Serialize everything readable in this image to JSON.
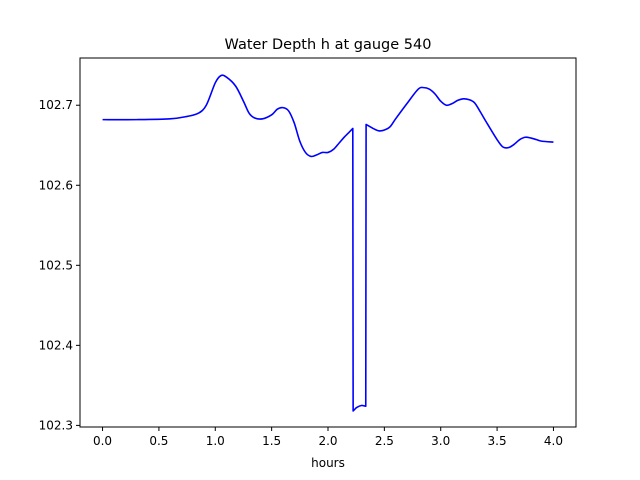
{
  "chart_data": {
    "type": "line",
    "title": "Water Depth h at gauge 540",
    "xlabel": "hours",
    "ylabel": "",
    "xlim": [
      -0.2,
      4.2
    ],
    "ylim": [
      102.298,
      102.759
    ],
    "grid": false,
    "xticks": [
      0.0,
      0.5,
      1.0,
      1.5,
      2.0,
      2.5,
      3.0,
      3.5,
      4.0
    ],
    "xtick_labels": [
      "0.0",
      "0.5",
      "1.0",
      "1.5",
      "2.0",
      "2.5",
      "3.0",
      "3.5",
      "4.0"
    ],
    "yticks": [
      102.3,
      102.4,
      102.5,
      102.6,
      102.7
    ],
    "ytick_labels": [
      "102.3",
      "102.4",
      "102.5",
      "102.6",
      "102.7"
    ],
    "series": [
      {
        "color": "#0000ff",
        "x": [
          0.0,
          0.3,
          0.6,
          0.75,
          0.85,
          0.92,
          1.0,
          1.05,
          1.1,
          1.18,
          1.25,
          1.3,
          1.35,
          1.42,
          1.5,
          1.55,
          1.6,
          1.65,
          1.7,
          1.75,
          1.8,
          1.85,
          1.9,
          1.95,
          2.0,
          2.05,
          2.1,
          2.15,
          2.2,
          2.22,
          2.223,
          2.25,
          2.3,
          2.335,
          2.338,
          2.4,
          2.45,
          2.5,
          2.55,
          2.6,
          2.7,
          2.8,
          2.85,
          2.9,
          2.95,
          3.0,
          3.05,
          3.1,
          3.15,
          3.2,
          3.25,
          3.3,
          3.35,
          3.4,
          3.5,
          3.55,
          3.6,
          3.65,
          3.7,
          3.75,
          3.8,
          3.85,
          3.9,
          4.0
        ],
        "y": [
          102.682,
          102.682,
          102.683,
          102.686,
          102.69,
          102.7,
          102.728,
          102.737,
          102.735,
          102.724,
          102.705,
          102.69,
          102.684,
          102.683,
          102.688,
          102.695,
          102.697,
          102.693,
          102.678,
          102.655,
          102.641,
          102.636,
          102.638,
          102.641,
          102.641,
          102.645,
          102.653,
          102.661,
          102.668,
          102.671,
          102.318,
          102.322,
          102.325,
          102.324,
          102.676,
          102.671,
          102.668,
          102.669,
          102.673,
          102.683,
          102.702,
          102.72,
          102.722,
          102.72,
          102.714,
          102.705,
          102.7,
          102.702,
          102.706,
          102.708,
          102.707,
          102.703,
          102.692,
          102.68,
          102.657,
          102.648,
          102.647,
          102.651,
          102.657,
          102.66,
          102.659,
          102.657,
          102.655,
          102.654
        ]
      }
    ]
  }
}
